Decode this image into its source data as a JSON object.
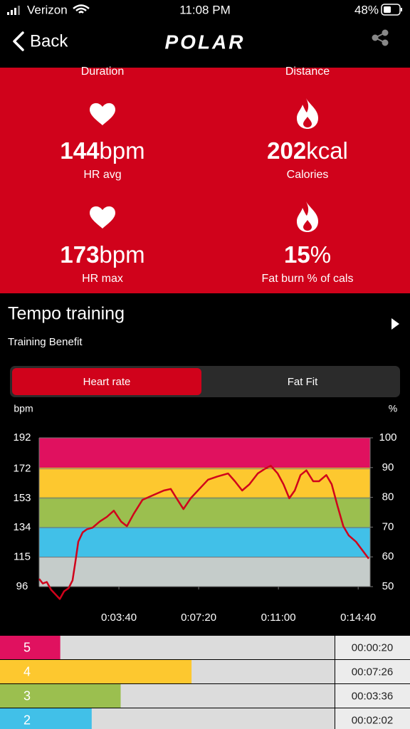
{
  "status_bar": {
    "carrier": "Verizon",
    "time": "11:08 PM",
    "battery": "48%"
  },
  "nav": {
    "back": "Back",
    "logo": "POLAR"
  },
  "summary": {
    "partial_labels": [
      "Duration",
      "Distance"
    ],
    "stats": [
      {
        "value": "144",
        "unit": "bpm",
        "label": "HR avg"
      },
      {
        "value": "202",
        "unit": "kcal",
        "label": "Calories"
      },
      {
        "value": "173",
        "unit": "bpm",
        "label": "HR max"
      },
      {
        "value": "15",
        "unit": "%",
        "label": "Fat burn % of cals"
      }
    ]
  },
  "training": {
    "title": "Tempo training",
    "subtitle": "Training Benefit"
  },
  "tabs": [
    "Heart rate",
    "Fat Fit"
  ],
  "chart_data": {
    "type": "line",
    "ylabel": "bpm",
    "y2label": "%",
    "x": [
      0,
      10,
      21,
      33,
      45,
      57,
      69,
      81,
      92,
      100,
      108,
      120,
      132,
      147,
      167,
      187,
      206,
      226,
      242,
      261,
      285,
      314,
      344,
      363,
      379,
      398,
      418,
      442,
      466,
      491,
      521,
      540,
      560,
      580,
      603,
      623,
      639,
      658,
      674,
      690,
      705,
      721,
      737,
      756,
      772,
      792,
      807,
      823,
      839,
      854,
      874,
      893,
      909
    ],
    "values": [
      101,
      98,
      99,
      94,
      91,
      88,
      93,
      95,
      100,
      112,
      125,
      131,
      133,
      134,
      138,
      141,
      145,
      138,
      135,
      143,
      152,
      155,
      158,
      159,
      153,
      146,
      153,
      159,
      165,
      167,
      169,
      164,
      158,
      162,
      169,
      172,
      174,
      169,
      162,
      153,
      158,
      168,
      171,
      164,
      164,
      168,
      162,
      148,
      135,
      129,
      125,
      119,
      114
    ],
    "color": "#d0021b",
    "xlim": [
      0,
      913
    ],
    "xticks": [
      {
        "value": 220,
        "label": "0:03:40"
      },
      {
        "value": 440,
        "label": "0:07:20"
      },
      {
        "value": 660,
        "label": "0:11:00"
      },
      {
        "value": 880,
        "label": "0:14:40"
      }
    ],
    "ylim": [
      96,
      192
    ],
    "yticks": [
      96,
      115,
      134,
      153,
      172,
      192
    ],
    "y2lim": [
      50,
      100
    ],
    "y2ticks": [
      50,
      60,
      70,
      80,
      90,
      100
    ],
    "zone_colors": [
      "#c5ccca",
      "#41c0e8",
      "#9bbf4f",
      "#fdc82f",
      "#e0115f"
    ]
  },
  "zones": {
    "xlim": [
      0,
      910
    ],
    "rows": [
      {
        "zone": 5,
        "color": "#e0115f",
        "seconds": 20,
        "time": "00:00:20"
      },
      {
        "zone": 4,
        "color": "#fdc82f",
        "seconds": 446,
        "time": "00:07:26"
      },
      {
        "zone": 3,
        "color": "#9bbf4f",
        "seconds": 216,
        "time": "00:03:36"
      },
      {
        "zone": 2,
        "color": "#41c0e8",
        "seconds": 122,
        "time": "00:02:02"
      }
    ]
  }
}
